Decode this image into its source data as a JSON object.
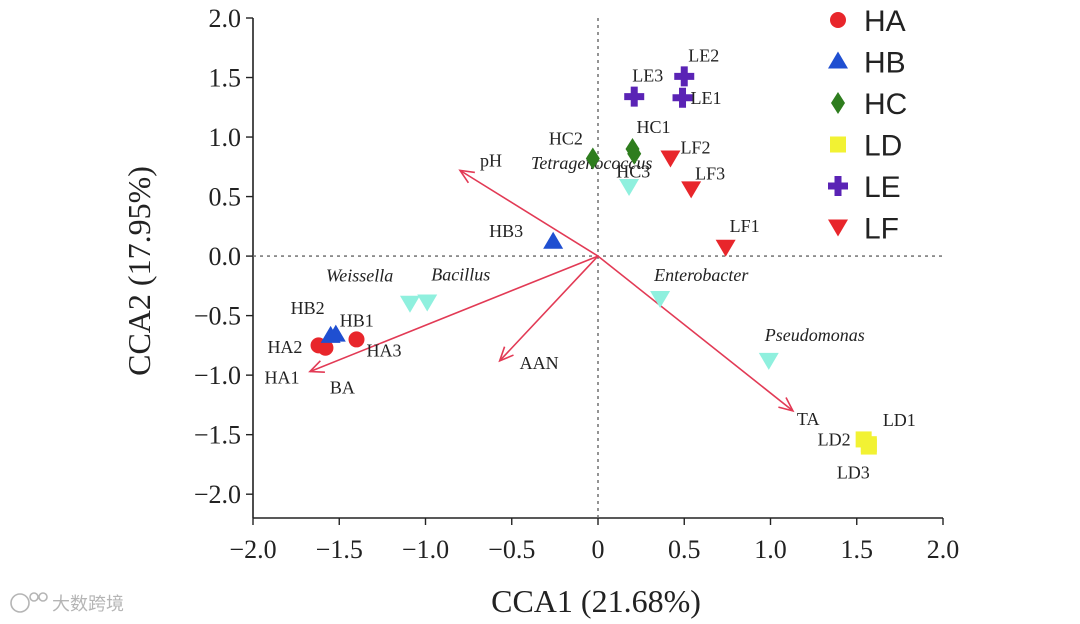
{
  "chart_data": {
    "type": "scatter",
    "title": "",
    "xlabel": "CCA1 (21.68%)",
    "ylabel": "CCA2 (17.95%)",
    "xlim": [
      -2.0,
      2.0
    ],
    "ylim": [
      -2.2,
      2.0
    ],
    "xticks": [
      "−2.0",
      "−1.5",
      "−1.0",
      "−0.5",
      "0",
      "0.5",
      "1.0",
      "1.5",
      "2.0"
    ],
    "yticks": [
      "2.0",
      "1.5",
      "1.0",
      "0.5",
      "0.0",
      "−0.5",
      "−1.0",
      "−1.5",
      "−2.0"
    ],
    "legend_position": "top-right",
    "groups": [
      {
        "name": "HA",
        "color": "#e8262b",
        "marker": "circle"
      },
      {
        "name": "HB",
        "color": "#1f4fd1",
        "marker": "triangle-up"
      },
      {
        "name": "HC",
        "color": "#2e7d1e",
        "marker": "diamond"
      },
      {
        "name": "LD",
        "color": "#f2f233",
        "marker": "square"
      },
      {
        "name": "LE",
        "color": "#5a23b5",
        "marker": "cross"
      },
      {
        "name": "LF",
        "color": "#e8262b",
        "marker": "triangle-down"
      }
    ],
    "samples": [
      {
        "label": "HA1",
        "group": "HA",
        "x": -1.62,
        "y": -0.75
      },
      {
        "label": "HA2",
        "group": "HA",
        "x": -1.58,
        "y": -0.77
      },
      {
        "label": "HA3",
        "group": "HA",
        "x": -1.4,
        "y": -0.7
      },
      {
        "label": "HB1",
        "group": "HB",
        "x": -1.52,
        "y": -0.66
      },
      {
        "label": "HB2",
        "group": "HB",
        "x": -1.55,
        "y": -0.67
      },
      {
        "label": "HB3",
        "group": "HB",
        "x": -0.26,
        "y": 0.12
      },
      {
        "label": "HC1",
        "group": "HC",
        "x": 0.2,
        "y": 0.9
      },
      {
        "label": "HC2",
        "group": "HC",
        "x": -0.03,
        "y": 0.82
      },
      {
        "label": "HC3",
        "group": "HC",
        "x": 0.21,
        "y": 0.86
      },
      {
        "label": "LD1",
        "group": "LD",
        "x": 1.57,
        "y": -1.58
      },
      {
        "label": "LD2",
        "group": "LD",
        "x": 1.54,
        "y": -1.54
      },
      {
        "label": "LD3",
        "group": "LD",
        "x": 1.57,
        "y": -1.6
      },
      {
        "label": "LE1",
        "group": "LE",
        "x": 0.49,
        "y": 1.33
      },
      {
        "label": "LE2",
        "group": "LE",
        "x": 0.5,
        "y": 1.51
      },
      {
        "label": "LE3",
        "group": "LE",
        "x": 0.21,
        "y": 1.34
      },
      {
        "label": "LF1",
        "group": "LF",
        "x": 0.74,
        "y": 0.07
      },
      {
        "label": "LF2",
        "group": "LF",
        "x": 0.42,
        "y": 0.82
      },
      {
        "label": "LF3",
        "group": "LF",
        "x": 0.54,
        "y": 0.56
      }
    ],
    "species": [
      {
        "label": "Tetragenococcus",
        "x": 0.18,
        "y": 0.58
      },
      {
        "label": "Weissella",
        "x": -1.09,
        "y": -0.4
      },
      {
        "label": "Bacillus",
        "x": -0.99,
        "y": -0.39
      },
      {
        "label": "Enterobacter",
        "x": 0.36,
        "y": -0.36
      },
      {
        "label": "Pseudomonas",
        "x": 0.99,
        "y": -0.88
      }
    ],
    "species_color": "#8ff0de",
    "vectors": [
      {
        "label": "pH",
        "x": -0.8,
        "y": 0.72
      },
      {
        "label": "AAN",
        "x": -0.57,
        "y": -0.88
      },
      {
        "label": "BA",
        "x": -1.67,
        "y": -0.97
      },
      {
        "label": "TA",
        "x": 1.13,
        "y": -1.3
      }
    ],
    "vector_color": "#e23a55"
  },
  "watermark": "大数跨境"
}
